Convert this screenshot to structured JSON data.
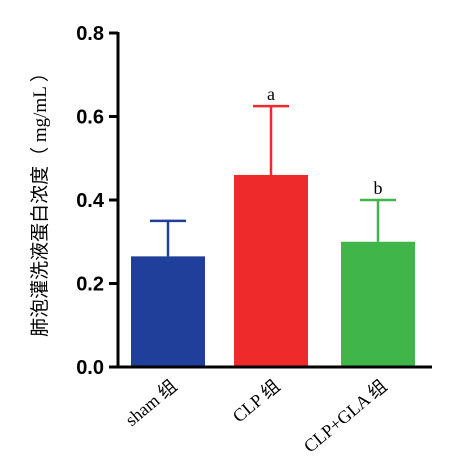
{
  "chart_data": {
    "type": "bar",
    "title": "",
    "xlabel": "",
    "ylabel": "肺泡灌洗液蛋白浓度（ mg/mL ）",
    "ylim": [
      0,
      0.8
    ],
    "yticks": [
      "0.0",
      "0.2",
      "0.4",
      "0.6",
      "0.8"
    ],
    "ytick_values": [
      0,
      0.2,
      0.4,
      0.6,
      0.8
    ],
    "grid": false,
    "legend": "none",
    "categories": [
      "sham 组",
      "CLP 组",
      "CLP+GLA 组"
    ],
    "values": [
      0.265,
      0.46,
      0.3
    ],
    "error_upper": [
      0.35,
      0.625,
      0.4
    ],
    "annotations": [
      "",
      "a",
      "b"
    ],
    "colors": [
      "#1f3f9a",
      "#ee2a2a",
      "#3fb54a"
    ]
  }
}
